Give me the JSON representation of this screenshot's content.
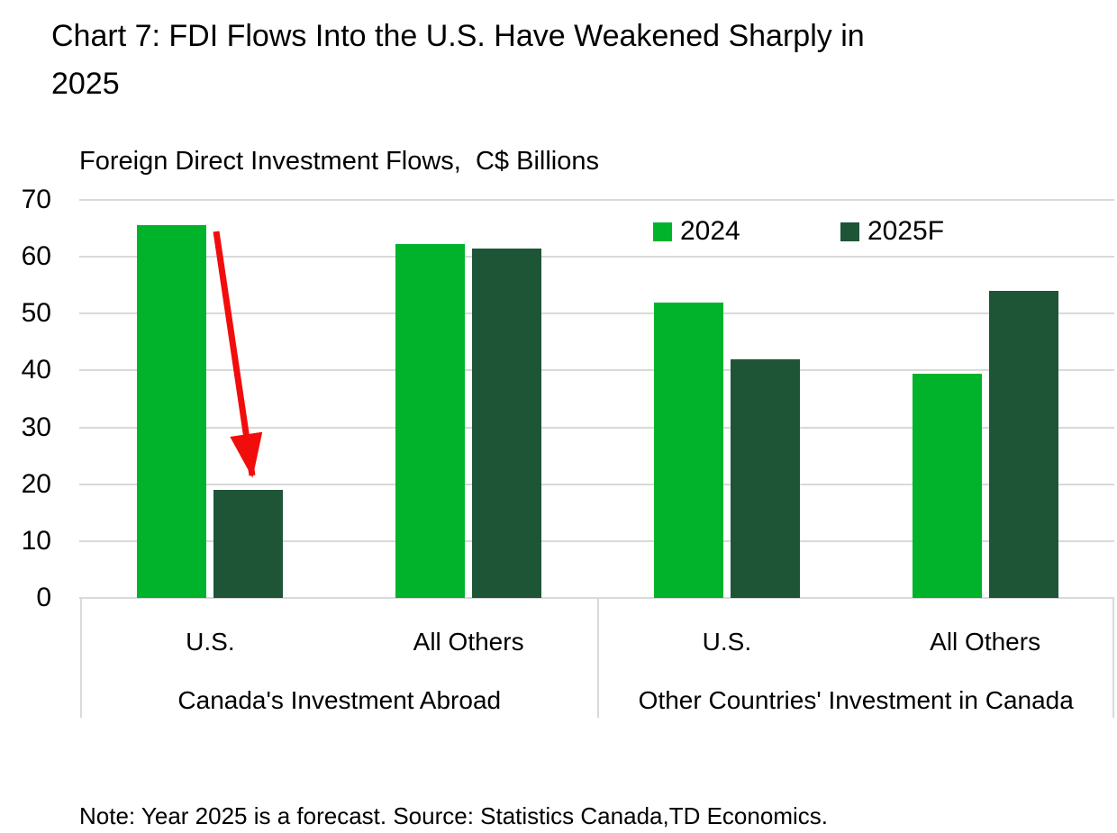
{
  "title": "Chart 7: FDI Flows Into the U.S. Have Weakened Sharply in 2025",
  "subtitle": "Foreign Direct Investment Flows,  C$ Billions",
  "note": "Note: Year 2025 is a forecast. Source: Statistics Canada,TD Economics.",
  "legend": {
    "items": [
      {
        "label": "2024",
        "color": "#00B32B"
      },
      {
        "label": "2025F",
        "color": "#1E5537"
      }
    ]
  },
  "colors": {
    "series_2024": "#00B32B",
    "series_2025f": "#1E5537",
    "gridline": "#D9D9D9",
    "arrow": "#F20D0D",
    "text": "#000000"
  },
  "chart_data": {
    "type": "bar",
    "title": "Foreign Direct Investment Flows, C$ Billions",
    "ylabel": "C$ Billions",
    "ylim": [
      0,
      70
    ],
    "yticks": [
      0,
      10,
      20,
      30,
      40,
      50,
      60,
      70
    ],
    "grid": true,
    "legend_position": "top-right",
    "groups": [
      {
        "label": "Canada's Investment Abroad",
        "categories": [
          "U.S.",
          "All Others"
        ]
      },
      {
        "label": "Other Countries' Investment in Canada",
        "categories": [
          "U.S.",
          "All Others"
        ]
      }
    ],
    "categories": [
      "U.S. — Canada's Investment Abroad",
      "All Others — Canada's Investment Abroad",
      "U.S. — Other Countries' Investment in Canada",
      "All Others — Other Countries' Investment in Canada"
    ],
    "series": [
      {
        "name": "2024",
        "color": "#00B32B",
        "values": [
          65.5,
          62.3,
          52,
          39.5
        ]
      },
      {
        "name": "2025F",
        "color": "#1E5537",
        "values": [
          19,
          61.4,
          42,
          54
        ]
      }
    ],
    "annotation": {
      "shape": "arrow",
      "color": "#F20D0D",
      "description": "red arrow from top of U.S. 2024 bar down to U.S. 2025F bar"
    }
  }
}
